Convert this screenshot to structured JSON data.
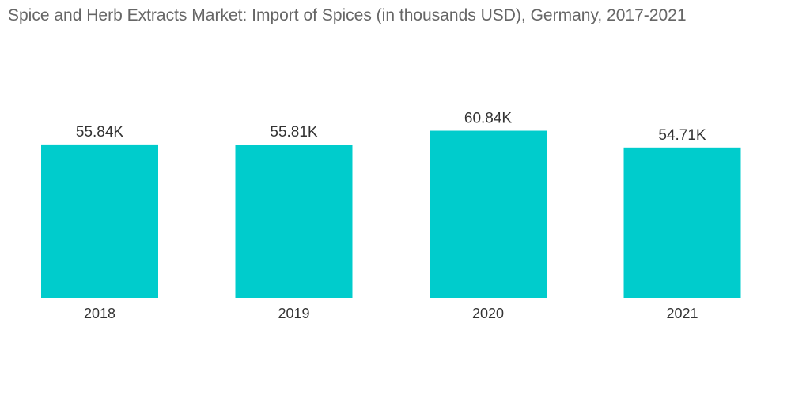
{
  "chart_data": {
    "type": "bar",
    "title": "Spice and Herb Extracts Market: Import of Spices (in thousands USD), Germany, 2017-2021",
    "categories": [
      "2018",
      "2019",
      "2020",
      "2021"
    ],
    "values": [
      55.84,
      55.81,
      60.84,
      54.71
    ],
    "data_labels": [
      "55.84K",
      "55.81K",
      "60.84K",
      "54.71K"
    ],
    "xlabel": "",
    "ylabel": "",
    "ylim": [
      0,
      63
    ],
    "grid": false,
    "legend": "none",
    "bar_color": "#00CCCC"
  }
}
